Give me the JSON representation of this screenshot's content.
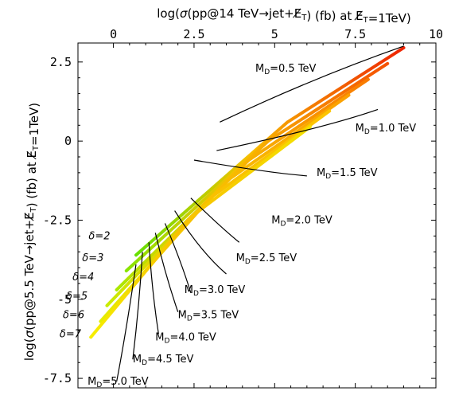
{
  "chart_data": {
    "type": "line",
    "title": "",
    "xlabel": "log(σ(pp@14 TeV→jet+E̸T) (fb) at E̸T=1TeV)",
    "ylabel": "log(σ(pp@5.5 TeV→jet+E̸T) (fb) at E̸T=1TeV)",
    "xlim": [
      -1.1,
      10.0
    ],
    "ylim": [
      -7.8,
      3.1
    ],
    "x_ticks": [
      0,
      2.5,
      5,
      7.5,
      10
    ],
    "x_tick_labels": [
      "0",
      "2.5",
      "5",
      "7.5",
      "10"
    ],
    "y_ticks": [
      2.5,
      0,
      -2.5,
      -5,
      -7.5
    ],
    "y_tick_labels": [
      "2.5",
      "0",
      "-2.5",
      "-5",
      "-7.5"
    ],
    "grid": false,
    "series_colors": {
      "delta_2": "#ee2200",
      "delta_3": "#f55000",
      "delta_4": "#f97a00",
      "delta_5": "#fba000",
      "delta_6": "#fcc400",
      "delta_7": "#f4e000"
    },
    "left_end_colors": [
      "#66e000",
      "#88e400",
      "#aae800",
      "#c8ec00",
      "#e2ee00",
      "#f6ee00"
    ],
    "series": [
      {
        "name": "δ=2",
        "x": [
          0.7,
          5.4,
          9.0
        ],
        "y": [
          -3.6,
          0.6,
          2.95
        ]
      },
      {
        "name": "δ=3",
        "x": [
          0.4,
          4.8,
          8.5
        ],
        "y": [
          -4.1,
          0.0,
          2.45
        ]
      },
      {
        "name": "δ=4",
        "x": [
          0.1,
          4.2,
          7.9
        ],
        "y": [
          -4.7,
          -0.6,
          1.95
        ]
      },
      {
        "name": "δ=5",
        "x": [
          -0.2,
          3.6,
          7.3
        ],
        "y": [
          -5.2,
          -1.2,
          1.45
        ]
      },
      {
        "name": "δ=6",
        "x": [
          -0.4,
          3.0,
          6.7
        ],
        "y": [
          -5.7,
          -1.8,
          0.95
        ]
      },
      {
        "name": "δ=7",
        "x": [
          -0.7,
          2.4,
          6.1
        ],
        "y": [
          -6.2,
          -2.4,
          0.45
        ]
      }
    ],
    "md_curves": [
      {
        "label": "MD=0.5 TeV",
        "x": [
          3.3,
          6.2,
          9.0
        ],
        "y": [
          0.6,
          2.0,
          3.0
        ]
      },
      {
        "label": "MD=1.0 TeV",
        "x": [
          3.2,
          6.5,
          8.2
        ],
        "y": [
          -0.3,
          0.4,
          1.0
        ]
      },
      {
        "label": "MD=1.5 TeV",
        "x": [
          2.5,
          4.8,
          6.0
        ],
        "y": [
          -0.6,
          -1.0,
          -1.1
        ]
      },
      {
        "label": "MD=2.0 TeV",
        "x": [
          2.4,
          3.3,
          3.9
        ],
        "y": [
          -1.8,
          -2.7,
          -3.2
        ]
      },
      {
        "label": "MD=2.5 TeV",
        "x": [
          1.9,
          2.7,
          3.5
        ],
        "y": [
          -2.2,
          -3.5,
          -4.2
        ]
      },
      {
        "label": "MD=3.0 TeV",
        "x": [
          1.6,
          2.1,
          2.4
        ],
        "y": [
          -2.6,
          -3.8,
          -4.8
        ]
      },
      {
        "label": "MD=3.5 TeV",
        "x": [
          1.3,
          1.6,
          2.0
        ],
        "y": [
          -2.9,
          -4.2,
          -5.4
        ]
      },
      {
        "label": "MD=4.0 TeV",
        "x": [
          1.1,
          1.2,
          1.4
        ],
        "y": [
          -3.2,
          -4.8,
          -6.1
        ]
      },
      {
        "label": "MD=4.5 TeV",
        "x": [
          0.9,
          0.8,
          0.6
        ],
        "y": [
          -3.5,
          -5.2,
          -6.9
        ]
      },
      {
        "label": "MD=5.0 TeV",
        "x": [
          0.7,
          0.4,
          0.1
        ],
        "y": [
          -3.9,
          -6.0,
          -7.6
        ]
      }
    ],
    "md_labels": [
      {
        "main": "M",
        "sub": "D",
        "rest": "=0.5 TeV",
        "x": 4.4,
        "y": 2.2
      },
      {
        "main": "M",
        "sub": "D",
        "rest": "=1.0 TeV",
        "x": 7.5,
        "y": 0.3
      },
      {
        "main": "M",
        "sub": "D",
        "rest": "=1.5 TeV",
        "x": 6.3,
        "y": -1.1
      },
      {
        "main": "M",
        "sub": "D",
        "rest": "=2.0 TeV",
        "x": 4.9,
        "y": -2.6
      },
      {
        "main": "M",
        "sub": "D",
        "rest": "=2.5 TeV",
        "x": 3.8,
        "y": -3.8
      },
      {
        "main": "M",
        "sub": "D",
        "rest": "=3.0 TeV",
        "x": 2.2,
        "y": -4.8
      },
      {
        "main": "M",
        "sub": "D",
        "rest": "=3.5 TeV",
        "x": 2.0,
        "y": -5.6
      },
      {
        "main": "M",
        "sub": "D",
        "rest": "=4.0 TeV",
        "x": 1.3,
        "y": -6.3
      },
      {
        "main": "M",
        "sub": "D",
        "rest": "=4.5 TeV",
        "x": 0.6,
        "y": -7.0
      },
      {
        "main": "M",
        "sub": "D",
        "rest": "=5.0 TeV",
        "x": -0.8,
        "y": -7.7
      }
    ],
    "delta_labels": [
      {
        "text": "δ=2",
        "x": -0.1,
        "y": -3.1
      },
      {
        "text": "δ=3",
        "x": -0.3,
        "y": -3.8
      },
      {
        "text": "δ=4",
        "x": -0.6,
        "y": -4.4
      },
      {
        "text": "δ=5",
        "x": -0.8,
        "y": -5.0
      },
      {
        "text": "δ=6",
        "x": -0.9,
        "y": -5.6
      },
      {
        "text": "δ=7",
        "x": -1.0,
        "y": -6.2
      }
    ]
  }
}
